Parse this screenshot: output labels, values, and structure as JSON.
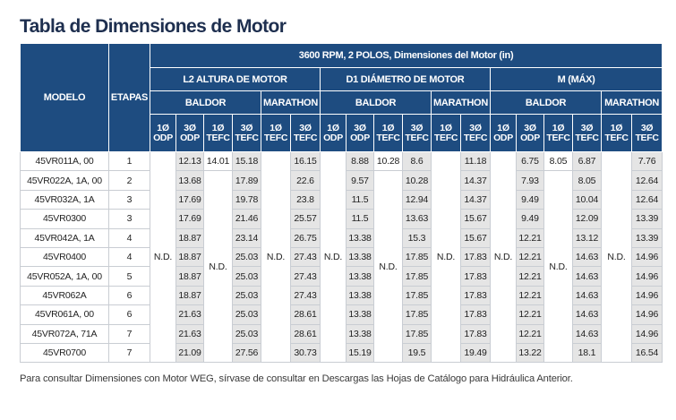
{
  "title": "Tabla de Dimensiones de Motor",
  "header": {
    "modelo": "MODELO",
    "etapas": "ETAPAS",
    "top": "3600 RPM, 2 POLOS, Dimensiones del Motor (in)",
    "groups": [
      "L2 ALTURA DE MOTOR",
      "D1 DIÁMETRO DE MOTOR",
      "M (MÁX)"
    ],
    "baldor": "BALDOR",
    "marathon": "MARATHON",
    "sub": [
      [
        "1Ø",
        "ODP"
      ],
      [
        "3Ø",
        "ODP"
      ],
      [
        "1Ø",
        "TEFC"
      ],
      [
        "3Ø",
        "TEFC"
      ],
      [
        "1Ø",
        "TEFC"
      ],
      [
        "3Ø",
        "TEFC"
      ]
    ]
  },
  "nd": "N.D.",
  "rows": [
    {
      "model": "45VR011A, 00",
      "stages": "1",
      "l2": [
        "12.13",
        "14.01",
        "15.18",
        "16.15"
      ],
      "d1": [
        "8.88",
        "10.28",
        "8.6",
        "11.18"
      ],
      "m": [
        "6.75",
        "8.05",
        "6.87",
        "7.76"
      ]
    },
    {
      "model": "45VR022A, 1A, 00",
      "stages": "2",
      "l2": [
        "13.68",
        "",
        "17.89",
        "22.6"
      ],
      "d1": [
        "9.57",
        "",
        "10.28",
        "14.37"
      ],
      "m": [
        "7.93",
        "",
        "8.05",
        "12.64"
      ]
    },
    {
      "model": "45VR032A, 1A",
      "stages": "3",
      "l2": [
        "17.69",
        "",
        "19.78",
        "23.8"
      ],
      "d1": [
        "11.5",
        "",
        "12.94",
        "14.37"
      ],
      "m": [
        "9.49",
        "",
        "10.04",
        "12.64"
      ]
    },
    {
      "model": "45VR0300",
      "stages": "3",
      "l2": [
        "17.69",
        "",
        "21.46",
        "25.57"
      ],
      "d1": [
        "11.5",
        "",
        "13.63",
        "15.67"
      ],
      "m": [
        "9.49",
        "",
        "12.09",
        "13.39"
      ]
    },
    {
      "model": "45VR042A, 1A",
      "stages": "4",
      "l2": [
        "18.87",
        "",
        "23.14",
        "26.75"
      ],
      "d1": [
        "13.38",
        "",
        "15.3",
        "15.67"
      ],
      "m": [
        "12.21",
        "",
        "13.12",
        "13.39"
      ]
    },
    {
      "model": "45VR0400",
      "stages": "4",
      "l2": [
        "18.87",
        "",
        "25.03",
        "27.43"
      ],
      "d1": [
        "13.38",
        "",
        "17.85",
        "17.83"
      ],
      "m": [
        "12.21",
        "",
        "14.63",
        "14.96"
      ]
    },
    {
      "model": "45VR052A, 1A, 00",
      "stages": "5",
      "l2": [
        "18.87",
        "",
        "25.03",
        "27.43"
      ],
      "d1": [
        "13.38",
        "",
        "17.85",
        "17.83"
      ],
      "m": [
        "12.21",
        "",
        "14.63",
        "14.96"
      ]
    },
    {
      "model": "45VR062A",
      "stages": "6",
      "l2": [
        "18.87",
        "",
        "25.03",
        "27.43"
      ],
      "d1": [
        "13.38",
        "",
        "17.85",
        "17.83"
      ],
      "m": [
        "12.21",
        "",
        "14.63",
        "14.96"
      ]
    },
    {
      "model": "45VR061A, 00",
      "stages": "6",
      "l2": [
        "21.63",
        "",
        "25.03",
        "28.61"
      ],
      "d1": [
        "13.38",
        "",
        "17.85",
        "17.83"
      ],
      "m": [
        "12.21",
        "",
        "14.63",
        "14.96"
      ]
    },
    {
      "model": "45VR072A, 71A",
      "stages": "7",
      "l2": [
        "21.63",
        "",
        "25.03",
        "28.61"
      ],
      "d1": [
        "13.38",
        "",
        "17.85",
        "17.83"
      ],
      "m": [
        "12.21",
        "",
        "14.63",
        "14.96"
      ]
    },
    {
      "model": "45VR0700",
      "stages": "7",
      "l2": [
        "21.09",
        "",
        "27.56",
        "30.73"
      ],
      "d1": [
        "15.19",
        "",
        "19.5",
        "19.49"
      ],
      "m": [
        "13.22",
        "",
        "18.1",
        "16.54"
      ]
    }
  ],
  "note": "Para consultar Dimensiones con Motor WEG, sírvase de consultar en Descargas las Hojas de Catálogo para Hidráulica Anterior."
}
